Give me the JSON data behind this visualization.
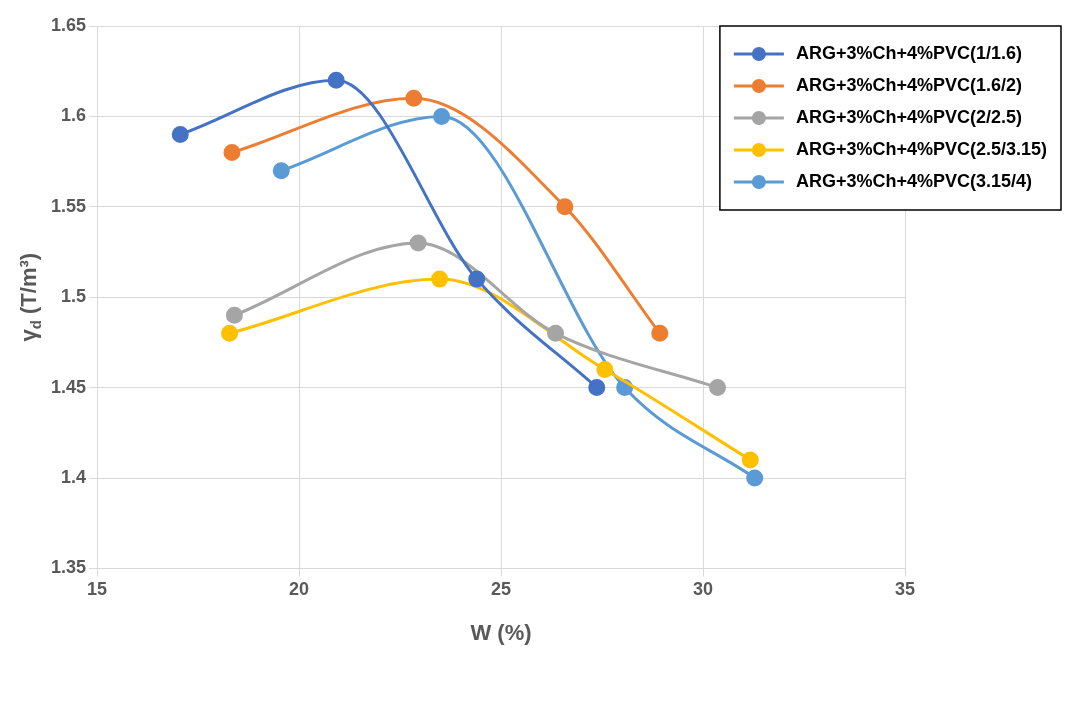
{
  "chart_data": {
    "type": "line",
    "xlabel": "W (%)",
    "ylabel": "γ$_{d}$ (T/m³)",
    "xlim": [
      15,
      35
    ],
    "xticks": [
      15,
      20,
      25,
      30,
      35
    ],
    "ylim": [
      1.35,
      1.65
    ],
    "yticks": [
      1.35,
      1.4,
      1.45,
      1.5,
      1.55,
      1.6,
      1.65
    ],
    "grid": true,
    "legend": "top right",
    "marker": "circle",
    "series": [
      {
        "name": "ARG+3%Ch+4%PVC(1/1.6)",
        "color": "#4472c4",
        "x": [
          17.06,
          20.92,
          24.4,
          27.37
        ],
        "values": [
          1.59,
          1.62,
          1.51,
          1.45
        ]
      },
      {
        "name": "ARG+3%Ch+4%PVC(1.6/2)",
        "color": "#ed7d31",
        "x": [
          18.34,
          22.84,
          26.58,
          28.93
        ],
        "values": [
          1.58,
          1.61,
          1.55,
          1.48
        ]
      },
      {
        "name": "ARG+3%Ch+4%PVC(2/2.5)",
        "color": "#a5a5a5",
        "x": [
          18.4,
          22.95,
          26.35,
          30.36
        ],
        "values": [
          1.49,
          1.53,
          1.48,
          1.45
        ]
      },
      {
        "name": "ARG+3%Ch+4%PVC(2.5/3.15)",
        "color": "#ffc000",
        "x": [
          18.28,
          23.48,
          27.57,
          31.17
        ],
        "values": [
          1.48,
          1.51,
          1.46,
          1.41
        ]
      },
      {
        "name": "ARG+3%Ch+4%PVC(3.15/4)",
        "color": "#5b9bd5",
        "x": [
          19.56,
          23.53,
          28.06,
          31.28
        ],
        "values": [
          1.57,
          1.6,
          1.45,
          1.4
        ]
      }
    ]
  }
}
